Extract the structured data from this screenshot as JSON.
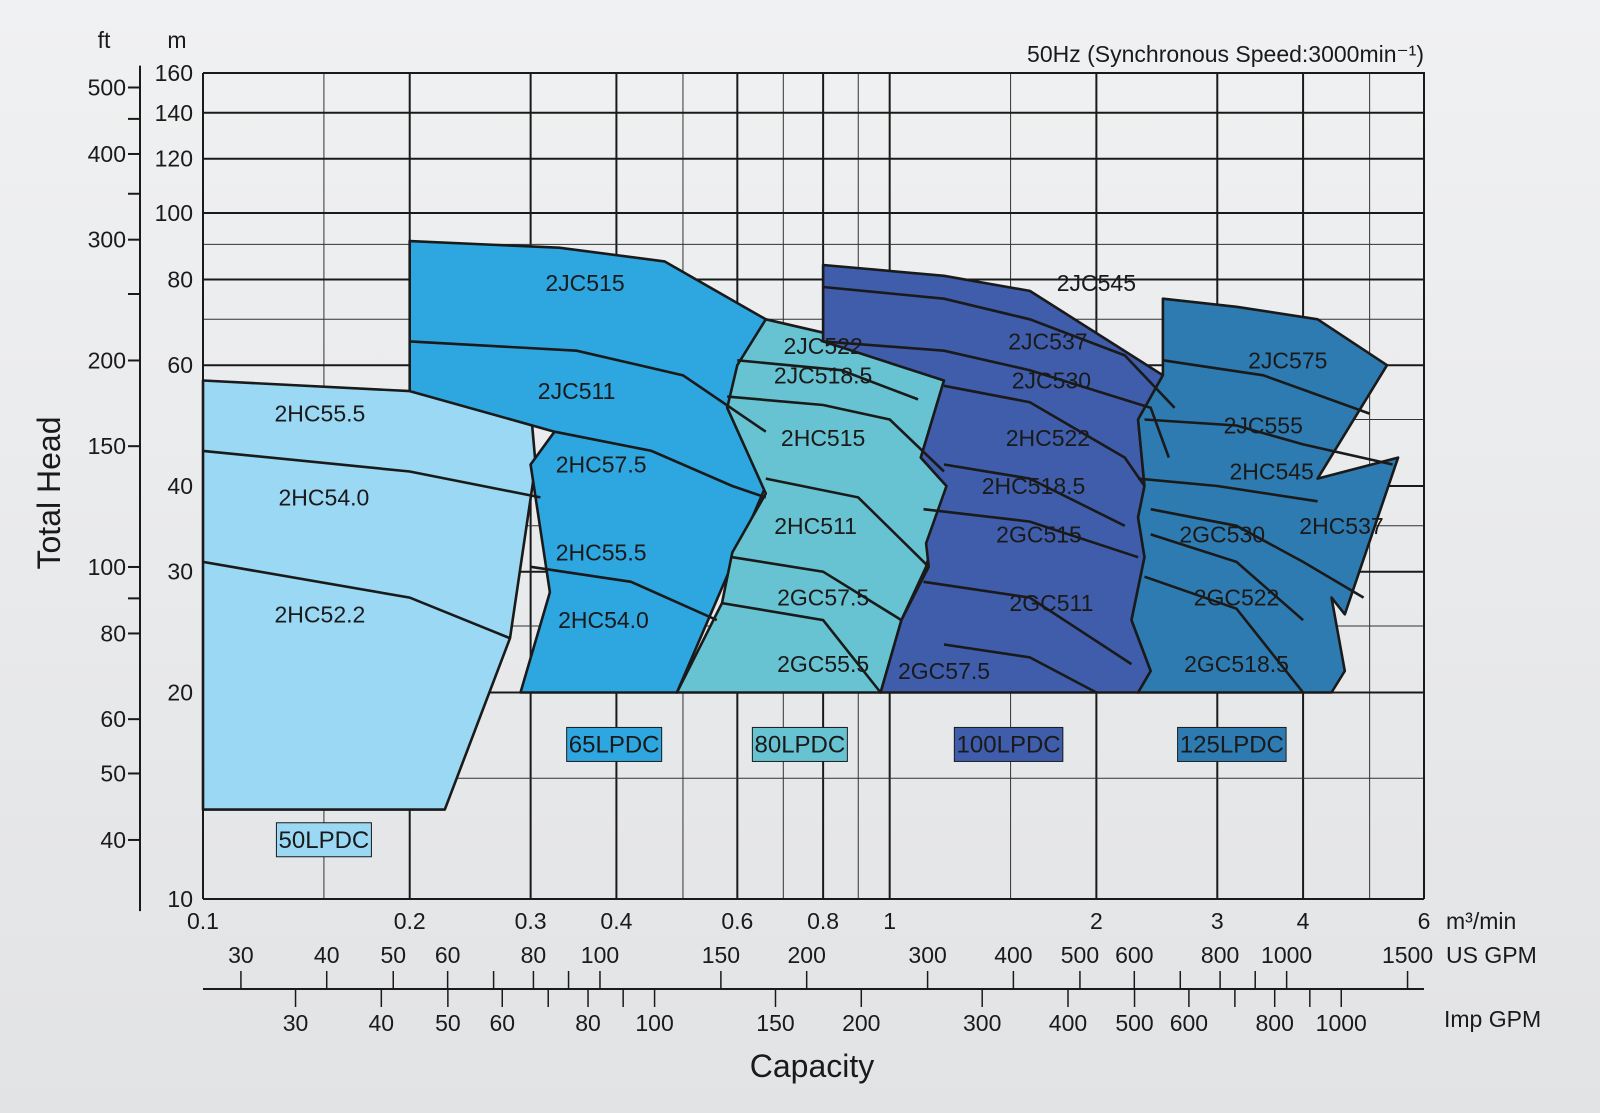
{
  "chart_data": {
    "type": "area",
    "title": "50Hz (Synchronous Speed:3000min⁻¹)",
    "xlabel": "Capacity",
    "ylabel": "Total Head",
    "x_scale": "log",
    "y_scale": "log",
    "xlim": [
      0.1,
      6
    ],
    "ylim": [
      10,
      160
    ],
    "x_unit": "m³/min",
    "y_unit_left": "ft",
    "y_unit_right": "m",
    "x_ticks": [
      "0.1",
      "0.2",
      "0.3",
      "0.4",
      "0.6",
      "0.8",
      "1",
      "2",
      "3",
      "4",
      "6"
    ],
    "y_ticks_m": [
      "10",
      "20",
      "30",
      "40",
      "60",
      "80",
      "100",
      "120",
      "140",
      "160"
    ],
    "y_ticks_ft": [
      "40",
      "50",
      "60",
      "80",
      "100",
      "150",
      "200",
      "300",
      "400",
      "500"
    ],
    "us_gpm_label": "US GPM",
    "us_gpm_ticks": [
      "30",
      "40",
      "50",
      "60",
      "80",
      "100",
      "150",
      "200",
      "300",
      "400",
      "500",
      "600",
      "800",
      "1000",
      "1500"
    ],
    "imp_gpm_label": "Imp GPM",
    "imp_gpm_ticks": [
      "30",
      "40",
      "50",
      "60",
      "80",
      "100",
      "150",
      "200",
      "300",
      "400",
      "500",
      "600",
      "800",
      "1000"
    ],
    "grid": true,
    "families": [
      {
        "name": "50LPDC",
        "color": "#9ad8f3",
        "boundary": [
          [
            0.1,
            57
          ],
          [
            0.1,
            13.5
          ],
          [
            0.225,
            13.5
          ],
          [
            0.28,
            24
          ],
          [
            0.305,
            43
          ],
          [
            0.3,
            52
          ],
          [
            0.2,
            55
          ]
        ],
        "curves": [
          {
            "label": "2HC55.5",
            "pts": [
              [
                0.1,
                45
              ],
              [
                0.2,
                42
              ],
              [
                0.31,
                38.5
              ]
            ]
          },
          {
            "label": "2HC54.0",
            "pts": [
              [
                0.1,
                31
              ],
              [
                0.2,
                27.5
              ],
              [
                0.28,
                24
              ]
            ]
          }
        ],
        "models": [
          {
            "label": "2HC55.5",
            "x": 0.148,
            "y": 51
          },
          {
            "label": "2HC54.0",
            "x": 0.15,
            "y": 38.5
          },
          {
            "label": "2HC52.2",
            "x": 0.148,
            "y": 26
          }
        ]
      },
      {
        "name": "65LPDC",
        "color": "#2ea6e0",
        "boundary": [
          [
            0.2,
            91
          ],
          [
            0.33,
            89
          ],
          [
            0.47,
            85
          ],
          [
            0.66,
            70
          ],
          [
            0.58,
            52
          ],
          [
            0.66,
            40
          ],
          [
            0.49,
            20
          ],
          [
            0.29,
            20
          ],
          [
            0.32,
            28
          ],
          [
            0.3,
            43
          ],
          [
            0.325,
            48
          ],
          [
            0.2,
            55
          ]
        ],
        "curves": [
          {
            "label": "2JC515",
            "pts": [
              [
                0.2,
                65
              ],
              [
                0.35,
                63
              ],
              [
                0.5,
                58
              ],
              [
                0.66,
                48
              ]
            ]
          },
          {
            "label": "2JC511",
            "pts": [
              [
                0.325,
                48
              ],
              [
                0.45,
                45
              ],
              [
                0.59,
                40
              ],
              [
                0.66,
                38.5
              ]
            ]
          },
          {
            "label": "2HC57.5",
            "pts": [
              [
                0.3,
                30.5
              ],
              [
                0.42,
                29
              ],
              [
                0.56,
                25.5
              ]
            ]
          }
        ],
        "models": [
          {
            "label": "2JC515",
            "x": 0.36,
            "y": 79
          },
          {
            "label": "2JC511",
            "x": 0.35,
            "y": 55
          },
          {
            "label": "2HC57.5",
            "x": 0.38,
            "y": 43
          },
          {
            "label": "2HC55.5",
            "x": 0.38,
            "y": 32
          },
          {
            "label": "2HC54.0",
            "x": 0.383,
            "y": 25.5
          }
        ]
      },
      {
        "name": "80LPDC",
        "color": "#67c3d2",
        "boundary": [
          [
            0.66,
            70
          ],
          [
            0.85,
            66
          ],
          [
            1.05,
            62
          ],
          [
            1.2,
            57
          ],
          [
            1.11,
            44
          ],
          [
            1.21,
            40
          ],
          [
            1.13,
            30.5
          ],
          [
            1.04,
            25.5
          ],
          [
            0.97,
            20
          ],
          [
            0.49,
            20
          ],
          [
            0.57,
            27
          ],
          [
            0.59,
            32
          ],
          [
            0.66,
            39
          ],
          [
            0.58,
            52
          ],
          [
            0.6,
            60
          ]
        ],
        "curves": [
          {
            "label": "2JC522",
            "pts": [
              [
                0.6,
                61
              ],
              [
                0.85,
                59
              ],
              [
                1.1,
                53.5
              ]
            ]
          },
          {
            "label": "2JC518.5",
            "pts": [
              [
                0.58,
                54
              ],
              [
                0.8,
                52.5
              ],
              [
                1.0,
                50
              ],
              [
                1.2,
                42
              ]
            ]
          },
          {
            "label": "2HC515",
            "pts": [
              [
                0.66,
                41
              ],
              [
                0.9,
                38.5
              ],
              [
                1.14,
                30.5
              ]
            ]
          },
          {
            "label": "2HC511",
            "pts": [
              [
                0.59,
                31.5
              ],
              [
                0.8,
                30
              ],
              [
                1.04,
                25.5
              ]
            ]
          },
          {
            "label": "2GC57.5",
            "pts": [
              [
                0.57,
                27
              ],
              [
                0.8,
                25.5
              ],
              [
                0.97,
                20
              ]
            ]
          }
        ],
        "models": [
          {
            "label": "2JC522",
            "x": 0.8,
            "y": 64
          },
          {
            "label": "2JC518.5",
            "x": 0.8,
            "y": 58
          },
          {
            "label": "2HC515",
            "x": 0.8,
            "y": 47
          },
          {
            "label": "2HC511",
            "x": 0.78,
            "y": 35
          },
          {
            "label": "2GC57.5",
            "x": 0.8,
            "y": 27.5
          },
          {
            "label": "2GC55.5",
            "x": 0.8,
            "y": 22
          }
        ]
      },
      {
        "name": "100LPDC",
        "color": "#3f5daa",
        "boundary": [
          [
            0.8,
            84
          ],
          [
            1.2,
            81
          ],
          [
            1.6,
            77
          ],
          [
            2.5,
            58
          ],
          [
            2.3,
            50
          ],
          [
            2.35,
            40
          ],
          [
            2.3,
            36
          ],
          [
            2.35,
            31.5
          ],
          [
            2.25,
            25.5
          ],
          [
            2.4,
            21.5
          ],
          [
            2.3,
            20
          ],
          [
            0.97,
            20
          ],
          [
            1.04,
            25.5
          ],
          [
            1.14,
            30.5
          ],
          [
            1.13,
            33
          ],
          [
            1.21,
            40
          ],
          [
            1.11,
            44
          ],
          [
            1.2,
            57
          ],
          [
            0.8,
            65
          ]
        ],
        "curves": [
          {
            "label": "2JC545",
            "pts": [
              [
                0.8,
                78
              ],
              [
                1.2,
                75
              ],
              [
                1.6,
                70
              ],
              [
                2.2,
                62
              ],
              [
                2.6,
                52
              ]
            ]
          },
          {
            "label": "2JC537",
            "pts": [
              [
                0.8,
                65
              ],
              [
                1.2,
                63
              ],
              [
                1.6,
                59
              ],
              [
                2.4,
                52
              ],
              [
                2.55,
                44
              ]
            ]
          },
          {
            "label": "2JC530",
            "pts": [
              [
                1.2,
                56
              ],
              [
                1.6,
                53
              ],
              [
                2.2,
                44
              ],
              [
                2.35,
                40
              ]
            ]
          },
          {
            "label": "2HC522",
            "pts": [
              [
                1.2,
                43
              ],
              [
                1.6,
                41
              ],
              [
                2.2,
                35
              ]
            ]
          },
          {
            "label": "2HC518.5",
            "pts": [
              [
                1.12,
                37
              ],
              [
                1.6,
                35.5
              ],
              [
                2.3,
                31.5
              ]
            ]
          },
          {
            "label": "2GC515",
            "pts": [
              [
                1.12,
                29
              ],
              [
                1.6,
                27.5
              ],
              [
                2.25,
                22
              ]
            ]
          },
          {
            "label": "2GC511",
            "pts": [
              [
                1.2,
                23.5
              ],
              [
                1.6,
                22.5
              ],
              [
                2.0,
                20
              ]
            ]
          }
        ],
        "models": [
          {
            "label": "2JC545",
            "x": 2.0,
            "y": 79
          },
          {
            "label": "2JC537",
            "x": 1.7,
            "y": 65
          },
          {
            "label": "2JC530",
            "x": 1.72,
            "y": 57
          },
          {
            "label": "2HC522",
            "x": 1.7,
            "y": 47
          },
          {
            "label": "2HC518.5",
            "x": 1.62,
            "y": 40
          },
          {
            "label": "2GC515",
            "x": 1.65,
            "y": 34
          },
          {
            "label": "2GC511",
            "x": 1.72,
            "y": 27
          },
          {
            "label": "2GC57.5",
            "x": 1.2,
            "y": 21.5
          }
        ]
      },
      {
        "name": "125LPDC",
        "color": "#2e7bb2",
        "boundary": [
          [
            2.5,
            75
          ],
          [
            3.2,
            73
          ],
          [
            4.2,
            70
          ],
          [
            5.3,
            60
          ],
          [
            4.2,
            41
          ],
          [
            5.5,
            44
          ],
          [
            4.6,
            26
          ],
          [
            4.4,
            27.5
          ],
          [
            4.6,
            21.5
          ],
          [
            4.4,
            20
          ],
          [
            2.3,
            20
          ],
          [
            2.4,
            21.5
          ],
          [
            2.25,
            25.5
          ],
          [
            2.35,
            31.5
          ],
          [
            2.3,
            36
          ],
          [
            2.35,
            40
          ],
          [
            2.3,
            50
          ],
          [
            2.5,
            58
          ]
        ],
        "curves": [
          {
            "label": "2JC575",
            "pts": [
              [
                2.5,
                61
              ],
              [
                3.5,
                58
              ],
              [
                5.0,
                51
              ]
            ]
          },
          {
            "label": "2JC555",
            "pts": [
              [
                2.35,
                50
              ],
              [
                3.2,
                49
              ],
              [
                4.0,
                46
              ],
              [
                5.4,
                43
              ]
            ]
          },
          {
            "label": "2HC545",
            "pts": [
              [
                2.3,
                41
              ],
              [
                3.0,
                40
              ],
              [
                4.2,
                38
              ]
            ]
          },
          {
            "label": "2GC530",
            "pts": [
              [
                2.4,
                37
              ],
              [
                3.2,
                35
              ],
              [
                4.0,
                31
              ],
              [
                4.9,
                27.5
              ]
            ]
          },
          {
            "label": "2HC537",
            "pts": [
              [
                2.4,
                34
              ],
              [
                3.2,
                31
              ],
              [
                4.0,
                25.5
              ]
            ]
          },
          {
            "label": "2GC522",
            "pts": [
              [
                2.35,
                29.5
              ],
              [
                3.2,
                26.5
              ],
              [
                4.0,
                20
              ]
            ]
          }
        ],
        "models": [
          {
            "label": "2JC575",
            "x": 3.8,
            "y": 61
          },
          {
            "label": "2JC555",
            "x": 3.5,
            "y": 49
          },
          {
            "label": "2HC545",
            "x": 3.6,
            "y": 42
          },
          {
            "label": "2GC530",
            "x": 3.05,
            "y": 34
          },
          {
            "label": "2HC537",
            "x": 4.55,
            "y": 35
          },
          {
            "label": "2GC522",
            "x": 3.2,
            "y": 27.5
          },
          {
            "label": "2GC518.5",
            "x": 3.2,
            "y": 22
          }
        ]
      }
    ]
  }
}
